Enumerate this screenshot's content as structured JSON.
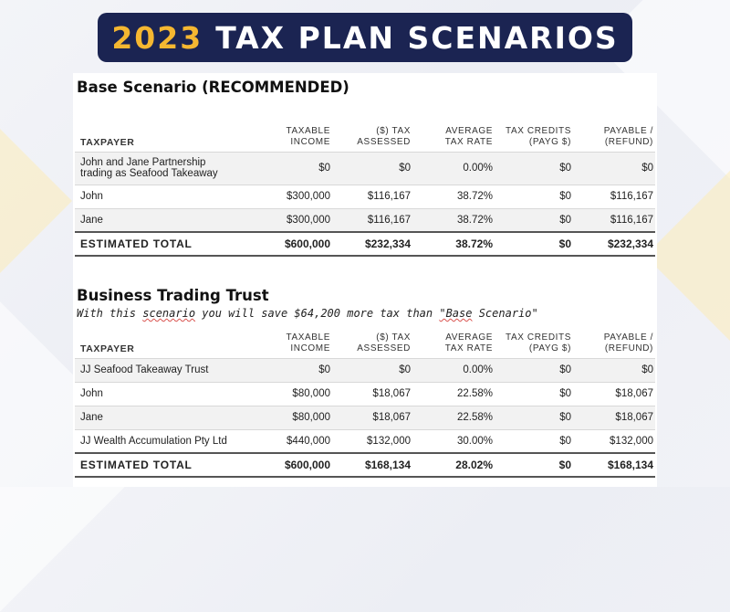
{
  "banner": {
    "year": "2023",
    "rest": "TAX PLAN SCENARIOS"
  },
  "headers": {
    "taxpayer": "TAXPAYER",
    "taxable_income": [
      "TAXABLE",
      "INCOME"
    ],
    "tax_assessed": [
      "($) TAX",
      "ASSESSED"
    ],
    "avg_rate": [
      "AVERAGE",
      "TAX RATE"
    ],
    "credits": [
      "TAX CREDITS",
      "(PAYG $)"
    ],
    "payable": [
      "PAYABLE /",
      "(REFUND)"
    ]
  },
  "base": {
    "title": "Base Scenario (RECOMMENDED)",
    "rows": [
      {
        "name": [
          "John and Jane Partnership",
          "trading as Seafood Takeaway"
        ],
        "income": "$0",
        "tax": "$0",
        "rate": "0.00%",
        "credits": "$0",
        "payable": "$0"
      },
      {
        "name": [
          "John"
        ],
        "income": "$300,000",
        "tax": "$116,167",
        "rate": "38.72%",
        "credits": "$0",
        "payable": "$116,167"
      },
      {
        "name": [
          "Jane"
        ],
        "income": "$300,000",
        "tax": "$116,167",
        "rate": "38.72%",
        "credits": "$0",
        "payable": "$116,167"
      }
    ],
    "total": {
      "label": "ESTIMATED TOTAL",
      "income": "$600,000",
      "tax": "$232,334",
      "rate": "38.72%",
      "credits": "$0",
      "payable": "$232,334"
    }
  },
  "trust": {
    "title": "Business Trading Trust",
    "subtitle_a": "With this ",
    "subtitle_b": "scenario",
    "subtitle_c": " you will save $64,200 more tax than ",
    "subtitle_d": "\"Base",
    "subtitle_e": " Scenario\"",
    "rows": [
      {
        "name": [
          "JJ Seafood Takeaway Trust"
        ],
        "income": "$0",
        "tax": "$0",
        "rate": "0.00%",
        "credits": "$0",
        "payable": "$0"
      },
      {
        "name": [
          "John"
        ],
        "income": "$80,000",
        "tax": "$18,067",
        "rate": "22.58%",
        "credits": "$0",
        "payable": "$18,067"
      },
      {
        "name": [
          "Jane"
        ],
        "income": "$80,000",
        "tax": "$18,067",
        "rate": "22.58%",
        "credits": "$0",
        "payable": "$18,067"
      },
      {
        "name": [
          "JJ Wealth Accumulation Pty Ltd"
        ],
        "income": "$440,000",
        "tax": "$132,000",
        "rate": "30.00%",
        "credits": "$0",
        "payable": "$132,000"
      }
    ],
    "total": {
      "label": "ESTIMATED TOTAL",
      "income": "$600,000",
      "tax": "$168,134",
      "rate": "28.02%",
      "credits": "$0",
      "payable": "$168,134"
    }
  }
}
